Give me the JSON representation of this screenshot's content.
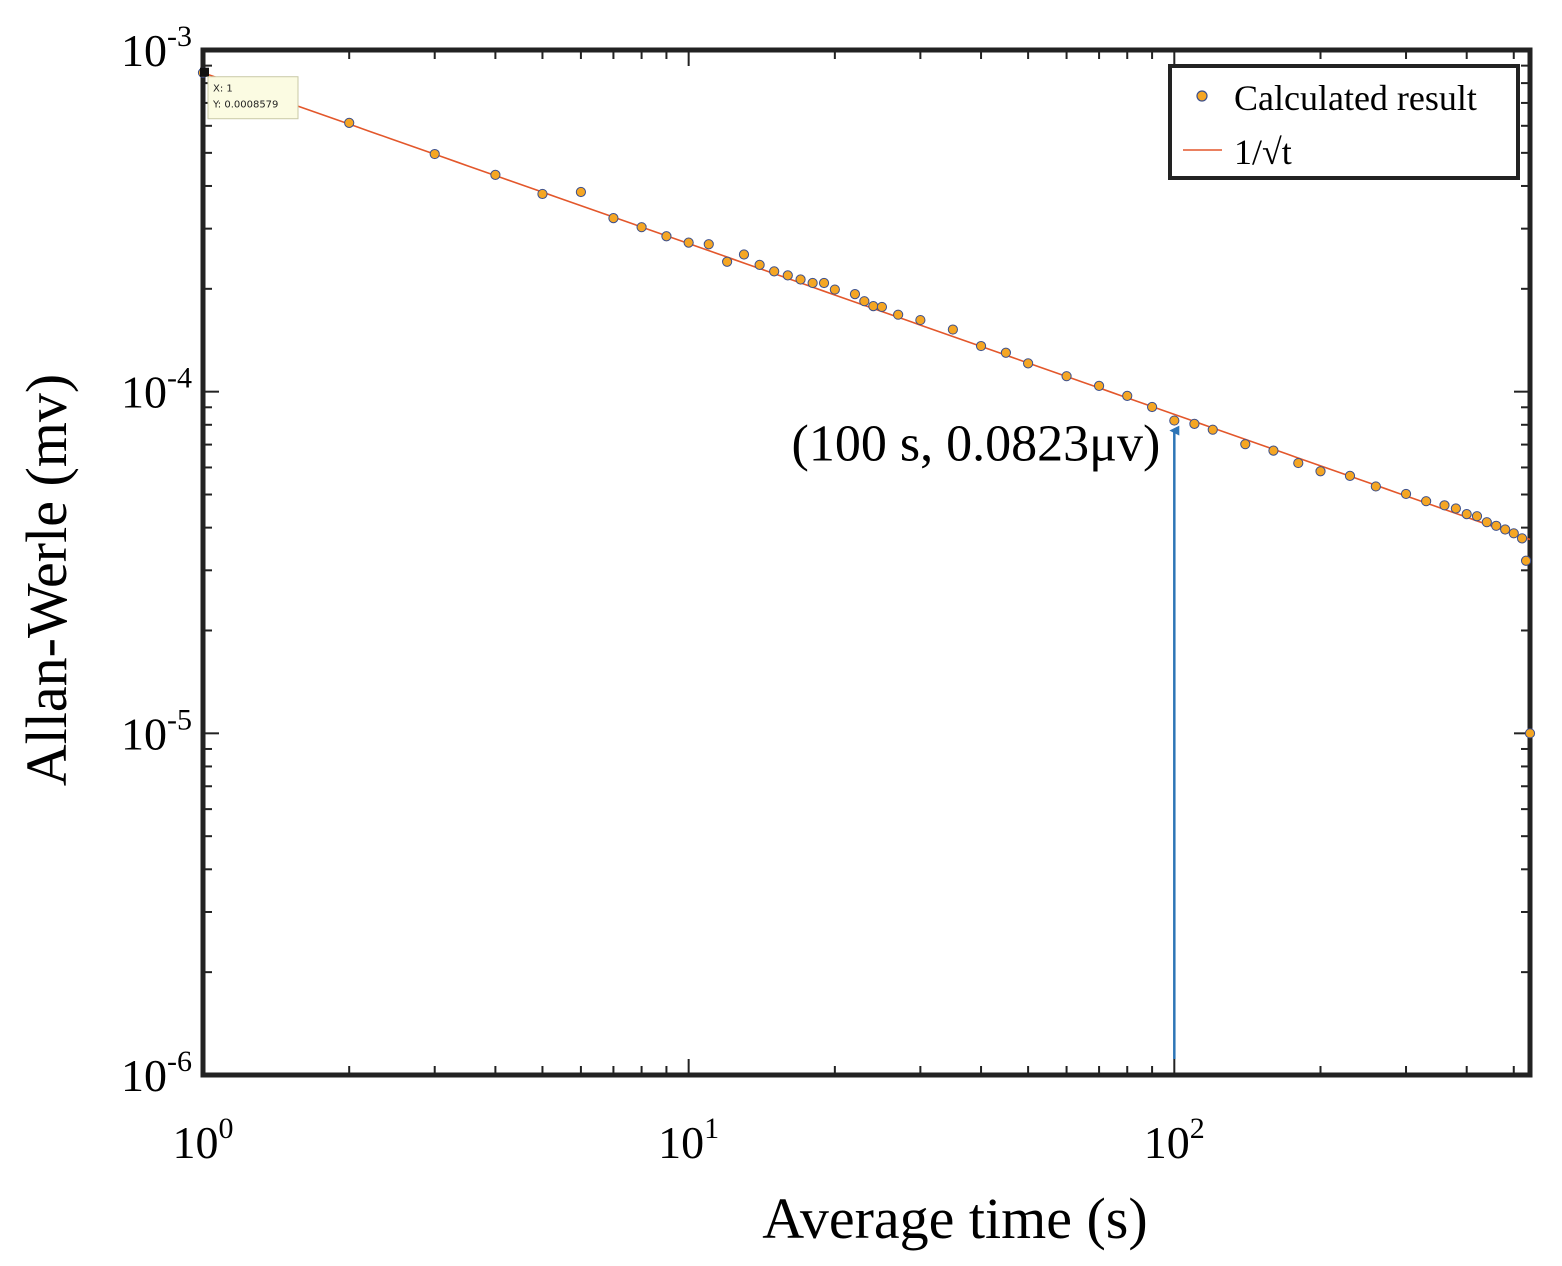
{
  "chart_data": {
    "type": "scatter",
    "title": "",
    "xlabel": "Average time (s)",
    "ylabel": "Allan-Werle (mv)",
    "xscale": "log",
    "yscale": "log",
    "xlim": [
      1,
      540
    ],
    "ylim": [
      1e-06,
      0.001
    ],
    "grid": false,
    "x_ticks": [
      {
        "value": 1,
        "base": "10",
        "exp": "0"
      },
      {
        "value": 10,
        "base": "10",
        "exp": "1"
      },
      {
        "value": 100,
        "base": "10",
        "exp": "2"
      }
    ],
    "y_ticks": [
      {
        "value": 0.001,
        "base": "10",
        "exp": "-3"
      },
      {
        "value": 0.0001,
        "base": "10",
        "exp": "-4"
      },
      {
        "value": 1e-05,
        "base": "10",
        "exp": "-5"
      },
      {
        "value": 1e-06,
        "base": "10",
        "exp": "-6"
      }
    ],
    "legend": {
      "position": "top-right",
      "entries": [
        {
          "label": "Calculated result",
          "marker": "circle"
        },
        {
          "label": "1/√t",
          "marker": "line"
        }
      ]
    },
    "series": [
      {
        "name": "Calculated result",
        "type": "scatter",
        "marker_fill": "#f5a623",
        "marker_edge": "#3b4f8c",
        "x": [
          1,
          2,
          3,
          4,
          5,
          6,
          7,
          8,
          9,
          10,
          11,
          12,
          13,
          14,
          15,
          16,
          17,
          18,
          19,
          20,
          22,
          23,
          24,
          25,
          27,
          30,
          35,
          40,
          45,
          50,
          60,
          70,
          80,
          90,
          100,
          110,
          120,
          140,
          160,
          180,
          200,
          230,
          260,
          300,
          330,
          360,
          380,
          400,
          420,
          440,
          460,
          480,
          500,
          520,
          530,
          540
        ],
        "y": [
          0.000858,
          0.000612,
          0.000496,
          0.000431,
          0.000379,
          0.000384,
          0.000322,
          0.000303,
          0.000285,
          0.000273,
          0.00027,
          0.00024,
          0.000252,
          0.000235,
          0.000225,
          0.000219,
          0.000213,
          0.000208,
          0.000208,
          0.000199,
          0.000193,
          0.000184,
          0.000178,
          0.000177,
          0.000168,
          0.000162,
          0.000152,
          0.000136,
          0.00013,
          0.000121,
          0.000111,
          0.000104,
          9.72e-05,
          9.02e-05,
          8.23e-05,
          8.05e-05,
          7.74e-05,
          7.02e-05,
          6.72e-05,
          6.18e-05,
          5.85e-05,
          5.67e-05,
          5.28e-05,
          5.02e-05,
          4.78e-05,
          4.65e-05,
          4.55e-05,
          4.38e-05,
          4.32e-05,
          4.15e-05,
          4.05e-05,
          3.95e-05,
          3.85e-05,
          3.72e-05,
          3.2e-05,
          1e-05
        ]
      },
      {
        "name": "1/√t",
        "type": "line",
        "color": "#e3572b",
        "formula": "0.000858 / sqrt(t)",
        "coefficient": 0.000858,
        "x_range": [
          1,
          540
        ]
      }
    ],
    "annotations": [
      {
        "kind": "datatip",
        "x_label": "X: 1",
        "y_label": "Y: 0.0008579",
        "x": 1,
        "y": 0.000858
      },
      {
        "kind": "arrow",
        "text": "(100 s, 0.0823μv)",
        "color": "#2e75b6",
        "x": 100,
        "y_from": 1e-06,
        "y_to": 8.23e-05
      }
    ]
  }
}
